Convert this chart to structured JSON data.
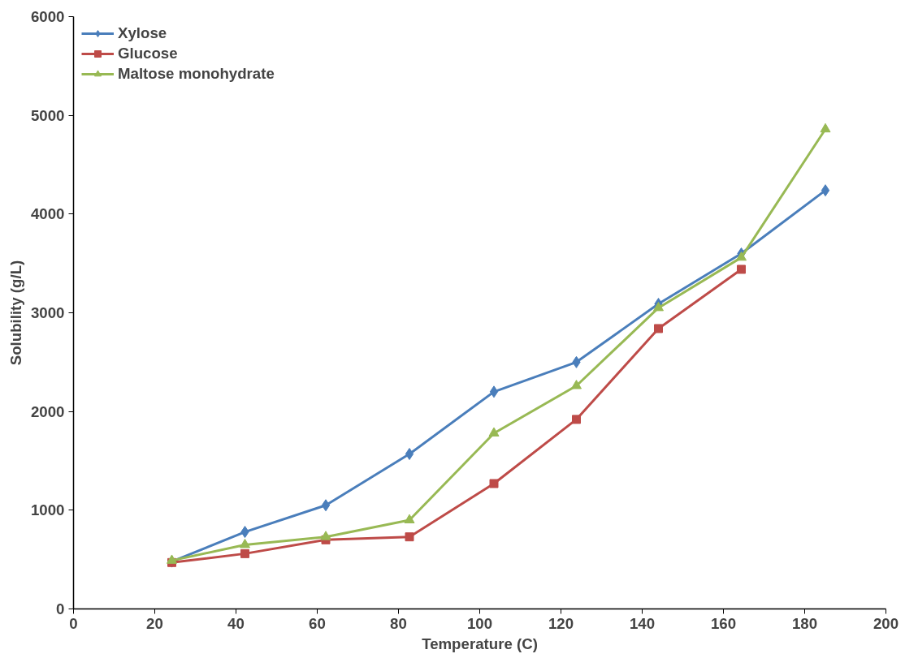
{
  "chart_data": {
    "type": "line",
    "xlabel": "Temperature (C)",
    "ylabel": "Solubility (g/L)",
    "xlim": [
      0,
      200
    ],
    "xticks": [
      0,
      20,
      40,
      60,
      80,
      100,
      120,
      140,
      160,
      180,
      200
    ],
    "ylim": [
      0,
      6000
    ],
    "yticks": [
      0,
      1000,
      2000,
      3000,
      4000,
      5000,
      6000
    ],
    "grid": false,
    "legend": "top left",
    "line_style": "solid",
    "series": [
      {
        "name": "Xylose",
        "color": "#4a7ebb",
        "marker": "diamond",
        "x": [
          24.2,
          42.2,
          62.1,
          82.7,
          103.5,
          123.8,
          144,
          164.4,
          185.1
        ],
        "values": [
          480,
          780,
          1050,
          1570,
          2200,
          2500,
          3090,
          3600,
          4240
        ]
      },
      {
        "name": "Glucose",
        "color": "#be4b48",
        "marker": "square",
        "x": [
          24.2,
          42.2,
          62.1,
          82.7,
          103.5,
          123.8,
          144,
          164.4
        ],
        "values": [
          470,
          560,
          700,
          730,
          1270,
          1920,
          2840,
          3440
        ]
      },
      {
        "name": "Maltose monohydrate",
        "color": "#98b954",
        "marker": "triangle",
        "x": [
          24.2,
          42.2,
          62.1,
          82.7,
          103.5,
          123.8,
          144,
          164.4,
          185.1
        ],
        "values": [
          490,
          650,
          730,
          900,
          1780,
          2260,
          3050,
          3560,
          4860
        ]
      }
    ]
  }
}
